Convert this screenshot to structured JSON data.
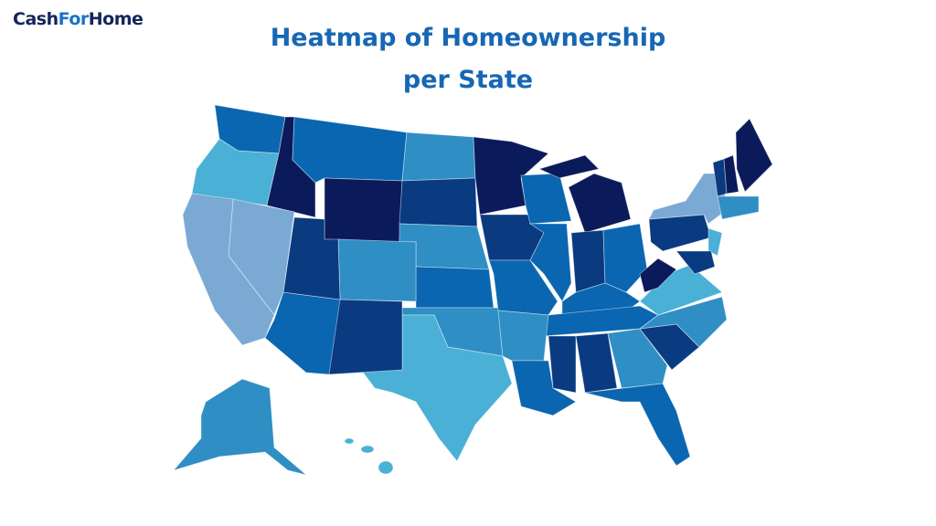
{
  "logo": [
    "Cash",
    "For",
    "Home"
  ],
  "title": [
    "Heatmap of Homeownership",
    "per State"
  ]
}
